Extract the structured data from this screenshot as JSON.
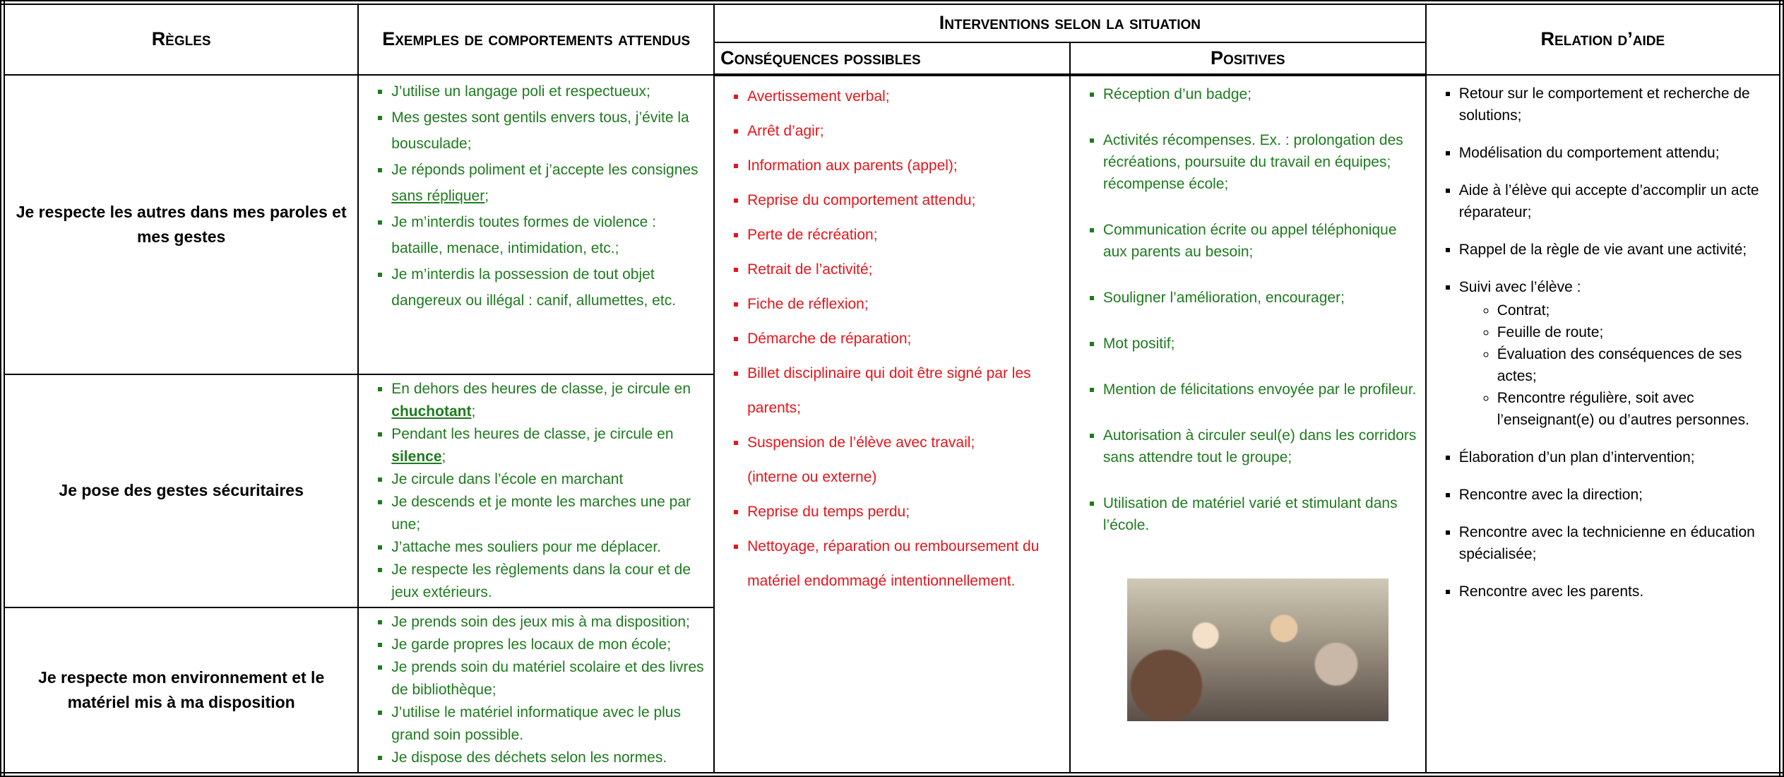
{
  "header": {
    "rules": "Règles",
    "examples": "Exemples de comportements attendus",
    "interventions": "Interventions selon la situation",
    "consequences": "Conséquences possibles",
    "positives": "Positives",
    "help": "Relation d’aide"
  },
  "rows": [
    {
      "rule": "Je respecte les autres dans mes paroles et mes gestes",
      "examples": [
        "J’utilise un langage poli et respectueux;",
        "Mes gestes sont gentils envers tous, j’évite la bousculade;",
        {
          "parts": [
            "Je réponds poliment et j’accepte les consignes ",
            "sans répliquer",
            ";"
          ],
          "style": "underline"
        },
        "Je m’interdis toutes formes de violence : bataille, menace, intimidation, etc.;",
        "Je m’interdis la possession de tout objet dangereux ou illégal : canif, allumettes, etc."
      ]
    },
    {
      "rule": "Je pose des gestes sécuritaires",
      "examples": [
        {
          "parts": [
            "En dehors des heures de classe, je circule en ",
            "chuchotant",
            ";"
          ],
          "style": "bold-underline"
        },
        {
          "parts": [
            "Pendant les heures de classe, je circule en ",
            "silence",
            ";"
          ],
          "style": "bold-underline"
        },
        "Je circule dans l’école en marchant",
        "Je descends et je monte les marches une par une;",
        "J’attache mes souliers pour me déplacer.",
        "Je respecte les règlements dans la cour et de jeux extérieurs."
      ]
    },
    {
      "rule": "Je respecte mon environnement et le matériel mis à ma disposition",
      "examples": [
        "Je prends soin des jeux mis à ma disposition;",
        "Je garde propres les locaux de mon école;",
        "Je prends soin du matériel scolaire et des livres de bibliothèque;",
        "J’utilise le matériel informatique avec le plus grand soin possible.",
        "Je dispose des déchets selon les normes."
      ]
    }
  ],
  "consequences": [
    "Avertissement verbal;",
    "Arrêt d’agir;",
    "Information aux parents (appel);",
    "Reprise du comportement attendu;",
    "Perte de récréation;",
    "Retrait de l’activité;",
    "Fiche de réflexion;",
    "Démarche de réparation;",
    "Billet disciplinaire qui doit être signé par les parents;",
    [
      "Suspension de l’élève avec travail;",
      "(interne ou externe)"
    ],
    "Reprise du temps perdu;",
    "Nettoyage, réparation ou remboursement du matériel endommagé intentionnellement."
  ],
  "positives": [
    "Réception d’un badge;",
    "Activités récompenses.  Ex. : prolongation des récréations, poursuite du travail en équipes; récompense école;",
    "Communication écrite ou appel téléphonique aux parents au besoin;",
    "Souligner l’amélioration, encourager;",
    "Mot positif;",
    "Mention de félicitations envoyée par le profileur.",
    "Autorisation à circuler seul(e) dans les corridors sans attendre tout le groupe;",
    "Utilisation de matériel varié et stimulant dans l’école."
  ],
  "help": [
    "Retour sur le comportement et recherche de solutions;",
    "Modélisation du comportement attendu;",
    "Aide à l’élève qui accepte d’accomplir un acte réparateur;",
    "Rappel de la règle de vie avant une activité;",
    {
      "text": "Suivi avec l’élève :",
      "subitems": [
        "Contrat;",
        "Feuille de route;",
        "Évaluation des conséquences de ses actes;",
        "Rencontre régulière, soit avec l’enseignant(e) ou d’autres personnes."
      ]
    },
    "Élaboration d’un plan d’intervention;",
    "Rencontre avec la direction;",
    "Rencontre avec la technicienne en éducation spécialisée;",
    "Rencontre avec les parents."
  ]
}
